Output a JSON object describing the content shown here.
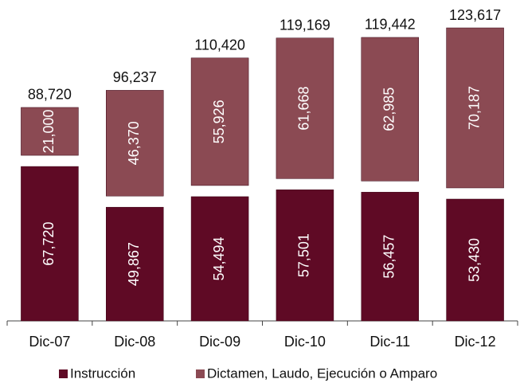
{
  "chart_data": {
    "type": "stacked_bar",
    "categories": [
      "Dic-07",
      "Dic-08",
      "Dic-09",
      "Dic-10",
      "Dic-11",
      "Dic-12"
    ],
    "series": [
      {
        "name": "Instrucción",
        "color": "#5f0a25",
        "values": [
          67720,
          49867,
          54494,
          57501,
          56457,
          53430
        ],
        "value_labels": [
          "67,720",
          "49,867",
          "54,494",
          "57,501",
          "56,457",
          "53,430"
        ]
      },
      {
        "name": "Dictamen, Laudo, Ejecución o Amparo",
        "color": "#8b4a53",
        "values": [
          21000,
          46370,
          55926,
          61668,
          62985,
          70187
        ],
        "value_labels": [
          "21,000",
          "46,370",
          "55,926",
          "61,668",
          "62,985",
          "70,187"
        ]
      }
    ],
    "totals": [
      88720,
      96237,
      110420,
      119169,
      119442,
      123617
    ],
    "total_labels": [
      "88,720",
      "96,237",
      "110,420",
      "119,169",
      "119,442",
      "123,617"
    ],
    "legend": "bottom"
  }
}
